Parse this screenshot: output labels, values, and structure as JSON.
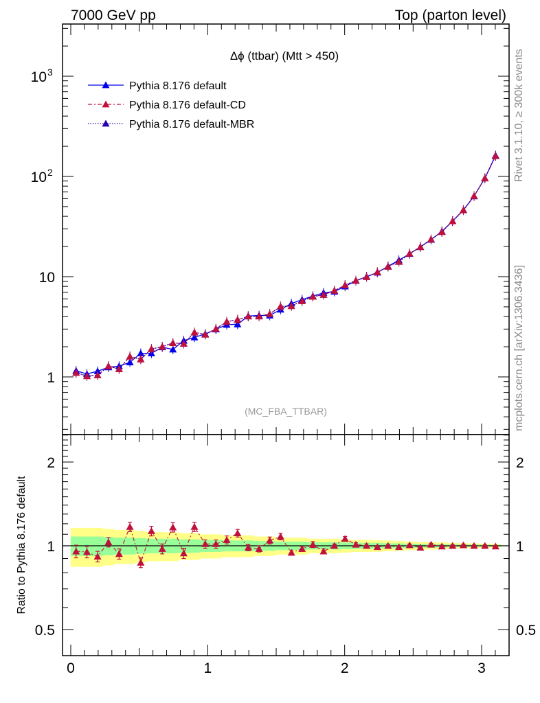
{
  "header": {
    "left": "7000 GeV pp",
    "right": "Top (parton level)"
  },
  "side_text": {
    "rivet": "Rivet 3.1.10, ≥ 300k events",
    "mcplots": "mcplots.cern.ch [arXiv:1306.3436]"
  },
  "colors": {
    "default": "#0000ee",
    "cd": "#c0103c",
    "mbr": "#2800b0",
    "band_inner": "#99ff99",
    "band_outer": "#ffff88"
  },
  "chart_data": [
    {
      "type": "line",
      "title": "Δϕ (ttbar) (Mtt > 450)",
      "watermark": "(MC_FBA_TTBAR)",
      "yscale": "log",
      "ylim": [
        0.3,
        3000
      ],
      "xlim": [
        -0.05,
        3.2
      ],
      "yticks": [
        {
          "v": 1,
          "label": "1"
        },
        {
          "v": 10,
          "label": "10"
        },
        {
          "v": 100,
          "label": "10",
          "sup": "2"
        },
        {
          "v": 1000,
          "label": "10",
          "sup": "3"
        }
      ],
      "legend_position": "top-left",
      "x": [
        0.039,
        0.118,
        0.196,
        0.275,
        0.353,
        0.432,
        0.511,
        0.589,
        0.668,
        0.746,
        0.825,
        0.903,
        0.982,
        1.06,
        1.139,
        1.218,
        1.296,
        1.375,
        1.453,
        1.532,
        1.611,
        1.689,
        1.768,
        1.846,
        1.925,
        2.003,
        2.082,
        2.16,
        2.239,
        2.317,
        2.396,
        2.474,
        2.553,
        2.631,
        2.71,
        2.788,
        2.867,
        2.945,
        3.024,
        3.102
      ],
      "series": [
        {
          "name": "Pythia 8.176 default",
          "color_key": "default",
          "dash": "",
          "values": [
            1.15,
            1.07,
            1.14,
            1.25,
            1.28,
            1.4,
            1.72,
            1.72,
            1.98,
            1.88,
            2.3,
            2.48,
            2.68,
            2.98,
            3.32,
            3.35,
            4.05,
            4.1,
            4.1,
            4.7,
            5.4,
            5.9,
            6.4,
            6.9,
            7.1,
            8.0,
            9.1,
            10.0,
            11.0,
            12.7,
            14.6,
            16.9,
            19.8,
            23.4,
            28.3,
            35.8,
            46.0,
            63.5,
            96.0,
            162.0
          ]
        },
        {
          "name": "Pythia 8.176 default-CD",
          "color_key": "cd",
          "dash": "6 3 2 3",
          "values": [
            1.1,
            1.02,
            1.04,
            1.28,
            1.2,
            1.6,
            1.5,
            1.9,
            2.0,
            2.18,
            2.15,
            2.78,
            2.65,
            3.02,
            3.56,
            3.72,
            4.02,
            4.02,
            4.25,
            5.05,
            5.1,
            5.7,
            6.32,
            6.6,
            7.25,
            8.25,
            9.15,
            9.95,
            11.1,
            12.6,
            14.1,
            17.0,
            19.8,
            23.6,
            28.0,
            35.8,
            46.2,
            63.8,
            95.8,
            160.0
          ]
        },
        {
          "name": "Pythia 8.176 default-MBR",
          "color_key": "mbr",
          "dash": "1.5 2",
          "values": [
            1.1,
            1.02,
            1.04,
            1.28,
            1.2,
            1.6,
            1.5,
            1.9,
            2.0,
            2.18,
            2.15,
            2.78,
            2.65,
            3.02,
            3.56,
            3.72,
            4.02,
            4.02,
            4.25,
            5.05,
            5.1,
            5.7,
            6.32,
            6.6,
            7.25,
            8.25,
            9.15,
            9.95,
            11.1,
            12.6,
            14.1,
            17.0,
            19.8,
            23.6,
            28.0,
            35.8,
            46.2,
            63.8,
            95.8,
            160.0
          ]
        }
      ]
    },
    {
      "type": "line",
      "ylabel": "Ratio to Pythia 8.176 default",
      "yscale": "log",
      "ylim": [
        0.4,
        2.5
      ],
      "xlim": [
        -0.05,
        3.2
      ],
      "yticks": [
        {
          "v": 0.5,
          "label": "0.5"
        },
        {
          "v": 1,
          "label": "1"
        },
        {
          "v": 2,
          "label": "2"
        }
      ],
      "xticks": [
        {
          "v": 0,
          "label": "0"
        },
        {
          "v": 1,
          "label": "1"
        },
        {
          "v": 2,
          "label": "2"
        },
        {
          "v": 3,
          "label": "3"
        }
      ],
      "x": [
        0.039,
        0.118,
        0.196,
        0.275,
        0.353,
        0.432,
        0.511,
        0.589,
        0.668,
        0.746,
        0.825,
        0.903,
        0.982,
        1.06,
        1.139,
        1.218,
        1.296,
        1.375,
        1.453,
        1.532,
        1.611,
        1.689,
        1.768,
        1.846,
        1.925,
        2.003,
        2.082,
        2.16,
        2.239,
        2.317,
        2.396,
        2.474,
        2.553,
        2.631,
        2.71,
        2.788,
        2.867,
        2.945,
        3.024,
        3.102
      ],
      "band_inner": [
        0.08,
        0.08,
        0.08,
        0.075,
        0.07,
        0.07,
        0.065,
        0.06,
        0.06,
        0.06,
        0.055,
        0.055,
        0.05,
        0.05,
        0.045,
        0.045,
        0.045,
        0.04,
        0.04,
        0.035,
        0.035,
        0.035,
        0.03,
        0.03,
        0.03,
        0.028,
        0.026,
        0.025,
        0.024,
        0.022,
        0.02,
        0.018,
        0.016,
        0.015,
        0.014,
        0.012,
        0.011,
        0.01,
        0.009,
        0.008
      ],
      "band_outer": [
        0.16,
        0.16,
        0.16,
        0.15,
        0.14,
        0.14,
        0.13,
        0.12,
        0.12,
        0.12,
        0.11,
        0.11,
        0.1,
        0.1,
        0.09,
        0.09,
        0.09,
        0.08,
        0.08,
        0.07,
        0.07,
        0.07,
        0.06,
        0.06,
        0.06,
        0.055,
        0.05,
        0.05,
        0.048,
        0.044,
        0.04,
        0.036,
        0.032,
        0.03,
        0.028,
        0.024,
        0.022,
        0.02,
        0.018,
        0.016
      ],
      "series": [
        {
          "name": "Pythia 8.176 default-CD",
          "color_key": "cd",
          "values": [
            0.955,
            0.95,
            0.915,
            1.03,
            0.935,
            1.17,
            0.87,
            1.13,
            0.975,
            1.165,
            0.94,
            1.17,
            1.015,
            1.015,
            1.05,
            1.11,
            0.985,
            0.975,
            1.045,
            1.08,
            0.945,
            0.975,
            1.01,
            0.955,
            1.0,
            1.06,
            1.01,
            1.0,
            0.99,
            1.0,
            0.99,
            1.005,
            0.985,
            1.01,
            0.995,
            1.0,
            1.005,
            1.0,
            1.0,
            0.995
          ],
          "errors": [
            0.05,
            0.045,
            0.04,
            0.04,
            0.04,
            0.045,
            0.035,
            0.045,
            0.04,
            0.045,
            0.04,
            0.045,
            0.035,
            0.035,
            0.035,
            0.035,
            0.025,
            0.025,
            0.03,
            0.03,
            0.02,
            0.02,
            0.025,
            0.02,
            0.015,
            0.02,
            0.015,
            0.015,
            0.012,
            0.012,
            0.01,
            0.01,
            0.01,
            0.01,
            0.01,
            0.008,
            0.008,
            0.008,
            0.008,
            0.008
          ]
        }
      ]
    }
  ]
}
